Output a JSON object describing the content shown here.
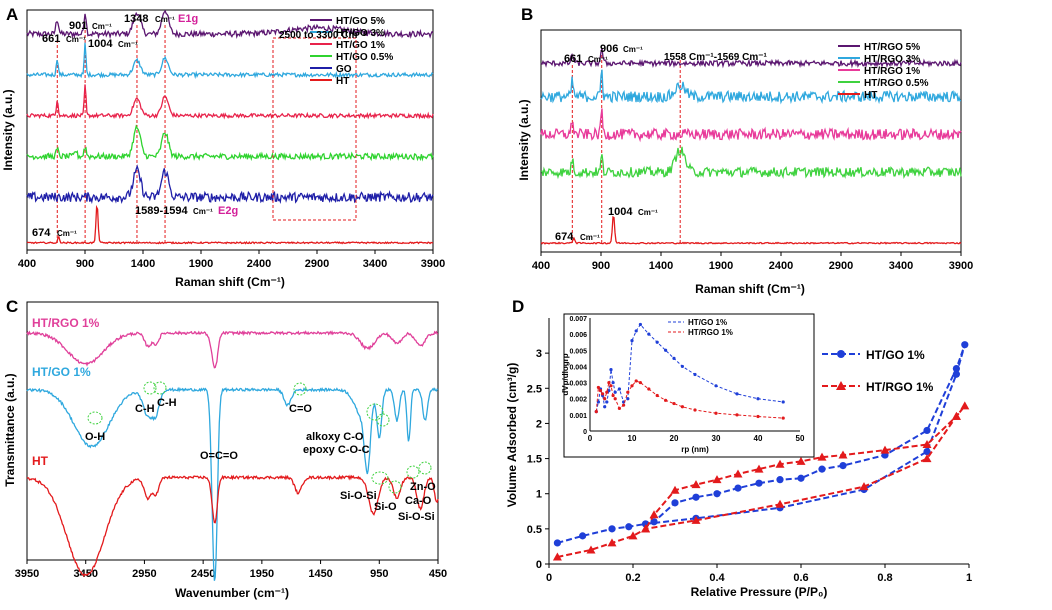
{
  "chart_data": [
    {
      "panel": "A",
      "type": "line",
      "xlabel": "Raman shift (Cm⁻¹)",
      "ylabel": "Intensity (a.u.)",
      "xlim": [
        400,
        3900
      ],
      "xticks": [
        "400",
        "900",
        "1400",
        "1900",
        "2400",
        "2900",
        "3400",
        "3900"
      ],
      "series": [
        {
          "name": "HT/GO 5%",
          "color": "#5b1670",
          "offset": 0.9,
          "noise": 0.012,
          "peaks": [
            [
              661,
              0.06,
              12
            ],
            [
              901,
              0.09,
              10
            ],
            [
              1348,
              0.09,
              30
            ],
            [
              1590,
              0.1,
              28
            ],
            [
              2900,
              0.025,
              250
            ]
          ]
        },
        {
          "name": "HT/GO 3%",
          "color": "#2fa8de",
          "offset": 0.73,
          "noise": 0.008,
          "peaks": [
            [
              661,
              0.07,
              8
            ],
            [
              901,
              0.13,
              7
            ],
            [
              1348,
              0.06,
              30
            ],
            [
              1590,
              0.07,
              28
            ]
          ]
        },
        {
          "name": "HT/GO 1%",
          "color": "#e8234b",
          "offset": 0.56,
          "noise": 0.008,
          "peaks": [
            [
              661,
              0.07,
              8
            ],
            [
              901,
              0.13,
              7
            ],
            [
              1348,
              0.07,
              30
            ],
            [
              1590,
              0.08,
              28
            ]
          ]
        },
        {
          "name": "HT/GO 0.5%",
          "color": "#2fd32f",
          "offset": 0.39,
          "noise": 0.012,
          "peaks": [
            [
              661,
              0.03,
              10
            ],
            [
              820,
              0.025,
              10
            ],
            [
              901,
              0.04,
              10
            ],
            [
              1348,
              0.12,
              30
            ],
            [
              1590,
              0.1,
              28
            ]
          ]
        },
        {
          "name": "GO",
          "color": "#1f1fa8",
          "offset": 0.22,
          "noise": 0.02,
          "peaks": [
            [
              1348,
              0.11,
              32
            ],
            [
              1590,
              0.11,
              30
            ]
          ]
        },
        {
          "name": "HT",
          "color": "#e31a1c",
          "offset": 0.03,
          "noise": 0.003,
          "peaks": [
            [
              674,
              0.025,
              8
            ],
            [
              1004,
              0.16,
              9
            ]
          ]
        }
      ],
      "annotations": [
        "661",
        "Cm⁻¹",
        "901",
        "Cm⁻¹",
        "1004",
        "Cm⁻¹",
        "1348",
        "Cm⁻¹",
        "E1g",
        "2500 to 3300 Cm⁻¹",
        "1589-1594",
        "Cm⁻¹",
        "E2g",
        "674",
        "Cm⁻¹"
      ]
    },
    {
      "panel": "B",
      "type": "line",
      "xlabel": "Raman shift (Cm⁻¹)",
      "ylabel": "Intensity (a.u.)",
      "xlim": [
        400,
        3900
      ],
      "xticks": [
        "400",
        "900",
        "1400",
        "1900",
        "2400",
        "2900",
        "3400",
        "3900"
      ],
      "series": [
        {
          "name": "HT/RGO 5%",
          "color": "#5b1670",
          "offset": 0.85,
          "noise": 0.012,
          "peaks": [
            [
              661,
              0.04,
              10
            ],
            [
              906,
              0.06,
              10
            ]
          ]
        },
        {
          "name": "HT/RGO 3%",
          "color": "#2fa8de",
          "offset": 0.7,
          "noise": 0.025,
          "peaks": [
            [
              661,
              0.07,
              8
            ],
            [
              906,
              0.13,
              7
            ],
            [
              1560,
              0.05,
              40
            ]
          ]
        },
        {
          "name": "HT/RGO 1%",
          "color": "#e83a9a",
          "offset": 0.53,
          "noise": 0.025,
          "peaks": [
            [
              661,
              0.07,
              8
            ],
            [
              906,
              0.12,
              7
            ]
          ]
        },
        {
          "name": "HT/RGO 0.5%",
          "color": "#3fd23f",
          "offset": 0.36,
          "noise": 0.022,
          "peaks": [
            [
              661,
              0.06,
              8
            ],
            [
              906,
              0.08,
              7
            ],
            [
              1560,
              0.1,
              40
            ]
          ]
        },
        {
          "name": "HT",
          "color": "#e31a1c",
          "offset": 0.04,
          "noise": 0.003,
          "peaks": [
            [
              674,
              0.025,
              8
            ],
            [
              1004,
              0.13,
              9
            ]
          ]
        }
      ],
      "annotations": [
        "661",
        "Cm⁻¹",
        "906",
        "Cm⁻¹",
        "1558 Cm⁻¹-1569 Cm⁻¹",
        "1004",
        "Cm⁻¹",
        "674",
        "Cm⁻¹"
      ]
    },
    {
      "panel": "C",
      "type": "line",
      "xlabel": "Wavenumber (cm⁻¹)",
      "ylabel": "Transmittance (a.u.)",
      "xlim": [
        3950,
        450
      ],
      "xticks": [
        "3950",
        "3450",
        "2950",
        "2450",
        "1950",
        "1450",
        "950",
        "450"
      ],
      "series": [
        {
          "name": "HT/RGO 1%",
          "color": "#e0409a",
          "offset": 0.88,
          "noise": 0.005,
          "dips": [
            [
              3450,
              0.12,
              150
            ],
            [
              2920,
              0.05,
              30
            ],
            [
              2850,
              0.04,
              25
            ],
            [
              2360,
              0.09,
              25
            ],
            [
              2340,
              0.06,
              20
            ],
            [
              1050,
              0.06,
              60
            ],
            [
              800,
              0.04,
              40
            ],
            [
              600,
              0.05,
              40
            ]
          ]
        },
        {
          "name": "HT/GO 1%",
          "color": "#2fa8de",
          "offset": 0.66,
          "noise": 0.005,
          "dips": [
            [
              3400,
              0.22,
              150
            ],
            [
              2920,
              0.1,
              40
            ],
            [
              2850,
              0.08,
              30
            ],
            [
              2360,
              0.5,
              20
            ],
            [
              2340,
              0.35,
              18
            ],
            [
              1730,
              0.06,
              30
            ],
            [
              1100,
              0.1,
              60
            ],
            [
              1050,
              0.25,
              25
            ],
            [
              950,
              0.18,
              20
            ],
            [
              800,
              0.12,
              20
            ],
            [
              700,
              0.2,
              15
            ],
            [
              560,
              0.12,
              20
            ]
          ]
        },
        {
          "name": "HT",
          "color": "#e31a1c",
          "offset": 0.32,
          "noise": 0.005,
          "dips": [
            [
              3450,
              0.38,
              160
            ],
            [
              2920,
              0.08,
              30
            ],
            [
              2850,
              0.06,
              25
            ],
            [
              2360,
              0.12,
              20
            ],
            [
              2340,
              0.08,
              18
            ],
            [
              1640,
              0.06,
              30
            ],
            [
              1000,
              0.14,
              40
            ],
            [
              800,
              0.08,
              30
            ],
            [
              600,
              0.12,
              30
            ],
            [
              460,
              0.1,
              20
            ]
          ]
        }
      ],
      "labels": [
        "HT/RGO 1%",
        "HT/GO 1%",
        "HT"
      ],
      "annotations": [
        "O-H",
        "C-H",
        "C-H",
        "O=C=O",
        "C=O",
        "alkoxy C-O",
        "epoxy C-O-C",
        "Si-O-Si",
        "Si-O",
        "Si-O-Si",
        "Zn-O",
        "Ca-O"
      ]
    },
    {
      "panel": "D",
      "type": "line",
      "xlabel": "Relative Pressure (P/P₀)",
      "ylabel": "Volume Adsorbed (cm³/g)",
      "xlim": [
        0,
        1
      ],
      "ylim": [
        0,
        3.5
      ],
      "xticks": [
        "0",
        "0.2",
        "0.4",
        "0.6",
        "0.8",
        "1"
      ],
      "yticks": [
        "0",
        "0.5",
        "1",
        "1.5",
        "2",
        "2.5",
        "3"
      ],
      "series": [
        {
          "name": "HT/GO 1%",
          "color": "#1f3fd8",
          "marker": "circle",
          "x": [
            0.02,
            0.08,
            0.15,
            0.19,
            0.23,
            0.35,
            0.55,
            0.75,
            0.9,
            0.97,
            0.99,
            0.97,
            0.9,
            0.8,
            0.7,
            0.65,
            0.6,
            0.55,
            0.5,
            0.45,
            0.4,
            0.35,
            0.3,
            0.25,
            0.23
          ],
          "y": [
            0.3,
            0.4,
            0.5,
            0.53,
            0.57,
            0.65,
            0.8,
            1.06,
            1.6,
            2.7,
            3.12,
            2.78,
            1.9,
            1.55,
            1.4,
            1.35,
            1.22,
            1.2,
            1.15,
            1.08,
            1.0,
            0.95,
            0.87,
            0.6,
            0.57
          ]
        },
        {
          "name": "HT/RGO 1%",
          "color": "#e31a1c",
          "marker": "triangle",
          "x": [
            0.02,
            0.1,
            0.15,
            0.2,
            0.23,
            0.35,
            0.55,
            0.75,
            0.9,
            0.97,
            0.99,
            0.97,
            0.9,
            0.8,
            0.7,
            0.65,
            0.6,
            0.55,
            0.5,
            0.45,
            0.4,
            0.35,
            0.3,
            0.25,
            0.23
          ],
          "y": [
            0.1,
            0.2,
            0.3,
            0.4,
            0.5,
            0.62,
            0.85,
            1.1,
            1.5,
            2.1,
            2.25,
            2.1,
            1.7,
            1.62,
            1.55,
            1.52,
            1.46,
            1.42,
            1.35,
            1.28,
            1.2,
            1.13,
            1.05,
            0.7,
            0.5
          ]
        }
      ],
      "inset": {
        "ylabel": "dVp/dlogrp",
        "xlabel": "rp (nm)",
        "xlim": [
          0,
          50
        ],
        "ylim": [
          0,
          0.007
        ],
        "xticks": [
          "0",
          "10",
          "20",
          "30",
          "40",
          "50"
        ],
        "yticks": [
          "0",
          "0.001",
          "0.002",
          "0.003",
          "0.004",
          "0.005",
          "0.006",
          "0.007"
        ],
        "series": [
          {
            "name": "HT/GO 1%",
            "color": "#1f3fd8",
            "x": [
              1.5,
              2,
              2.5,
              3,
              3.5,
              4,
              4.5,
              5,
              5.5,
              6,
              7,
              8,
              9,
              10,
              11,
              12,
              14,
              16,
              18,
              20,
              22,
              25,
              30,
              35,
              40,
              46
            ],
            "y": [
              0.0012,
              0.0018,
              0.0026,
              0.0022,
              0.0015,
              0.0018,
              0.0025,
              0.0038,
              0.003,
              0.0024,
              0.0026,
              0.0018,
              0.002,
              0.0056,
              0.0062,
              0.0066,
              0.006,
              0.0055,
              0.005,
              0.0045,
              0.004,
              0.0035,
              0.0028,
              0.0023,
              0.002,
              0.0018
            ]
          },
          {
            "name": "HT/RGO 1%",
            "color": "#e31a1c",
            "x": [
              1.5,
              2,
              2.5,
              3,
              3.5,
              4,
              4.5,
              5,
              5.5,
              6,
              7,
              8,
              9,
              10,
              11,
              12,
              14,
              16,
              18,
              20,
              22,
              25,
              30,
              35,
              40,
              46
            ],
            "y": [
              0.0012,
              0.0027,
              0.0025,
              0.0023,
              0.002,
              0.0024,
              0.003,
              0.0028,
              0.0022,
              0.002,
              0.0014,
              0.0016,
              0.0024,
              0.0028,
              0.0031,
              0.003,
              0.0026,
              0.0022,
              0.0019,
              0.0017,
              0.0015,
              0.0013,
              0.0011,
              0.001,
              0.0009,
              0.0008
            ]
          }
        ]
      }
    }
  ]
}
